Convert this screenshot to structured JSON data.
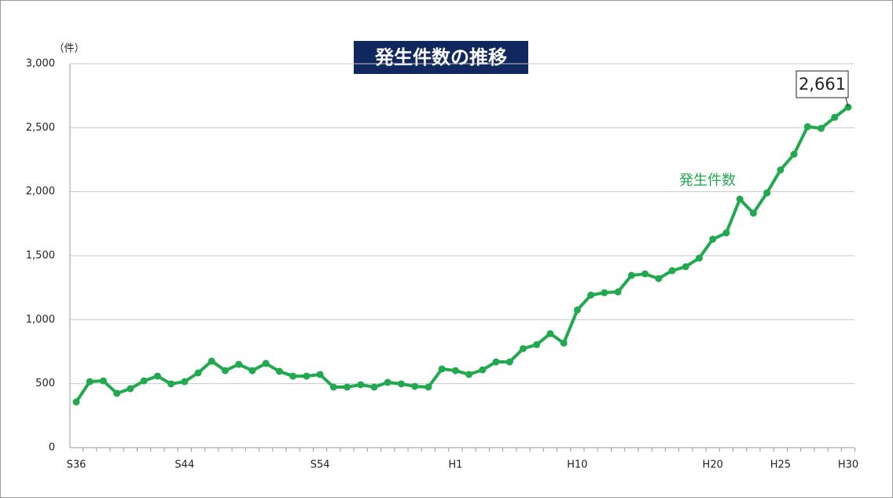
{
  "chart_data": {
    "type": "line",
    "title": "発生件数の推移",
    "y_unit": "（件）",
    "categories": [
      "S36",
      null,
      null,
      null,
      null,
      null,
      null,
      null,
      "S44",
      null,
      null,
      null,
      null,
      null,
      null,
      null,
      null,
      null,
      "S54",
      null,
      null,
      null,
      null,
      null,
      null,
      null,
      null,
      null,
      "H1",
      null,
      null,
      null,
      null,
      null,
      null,
      null,
      null,
      "H10",
      null,
      null,
      null,
      null,
      null,
      null,
      null,
      null,
      null,
      "H20",
      null,
      null,
      null,
      null,
      "H25",
      null,
      null,
      null,
      null,
      "H30"
    ],
    "series": [
      {
        "name": "発生件数",
        "color": "#22a94f",
        "values": [
          357,
          516,
          522,
          424,
          461,
          522,
          559,
          498,
          516,
          584,
          676,
          602,
          651,
          602,
          658,
          596,
          559,
          559,
          572,
          473,
          473,
          492,
          473,
          510,
          498,
          479,
          473,
          615,
          602,
          572,
          608,
          670,
          670,
          774,
          805,
          891,
          817,
          1076,
          1192,
          1211,
          1217,
          1346,
          1358,
          1321,
          1383,
          1414,
          1481,
          1629,
          1678,
          1942,
          1832,
          1991,
          2170,
          2293,
          2508,
          2495,
          2581,
          2661
        ],
        "value_labels": [
          null,
          null,
          null,
          null,
          null,
          null,
          null,
          null,
          null,
          null,
          null,
          null,
          null,
          null,
          null,
          null,
          null,
          null,
          null,
          null,
          null,
          null,
          null,
          null,
          null,
          null,
          null,
          null,
          null,
          null,
          null,
          null,
          null,
          null,
          null,
          null,
          null,
          null,
          null,
          null,
          null,
          null,
          null,
          null,
          null,
          null,
          null,
          null,
          null,
          null,
          null,
          null,
          null,
          null,
          null,
          null,
          null,
          "2,661"
        ]
      }
    ],
    "ylim": [
      0,
      3000
    ],
    "yticks": [
      0,
      500,
      {
        "value": 1000,
        "label": "1,000"
      },
      {
        "value": 1500,
        "label": "1,500"
      },
      {
        "value": 2000,
        "label": "2,000"
      },
      {
        "value": 2500,
        "label": "2,500"
      },
      {
        "value": 3000,
        "label": "3,000"
      }
    ],
    "grid": true
  }
}
